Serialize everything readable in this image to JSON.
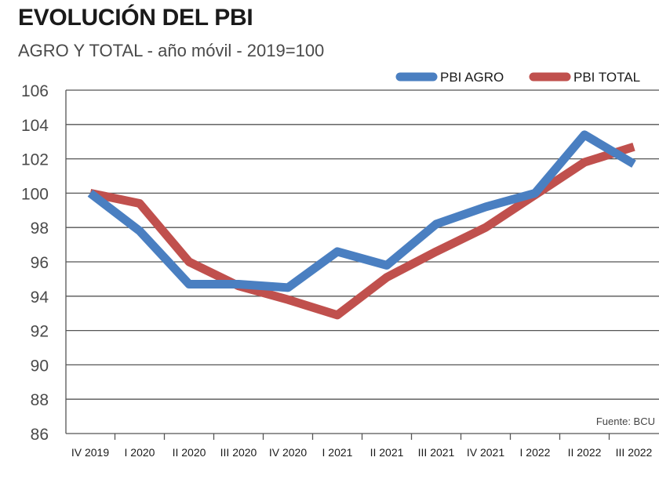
{
  "header": {
    "title": "EVOLUCIÓN DEL PBI",
    "subtitle": "AGRO Y TOTAL - año móvil - 2019=100"
  },
  "source": "Fuente: BCU",
  "colors": {
    "agro": "#4a7fc1",
    "total": "#c0504d",
    "grid": "#555555"
  },
  "chart_data": {
    "type": "line",
    "categories": [
      "IV 2019",
      "I 2020",
      "II 2020",
      "III 2020",
      "IV 2020",
      "I 2021",
      "II 2021",
      "III 2021",
      "IV 2021",
      "I 2022",
      "II 2022",
      "III 2022"
    ],
    "series": [
      {
        "name": "PBI AGRO",
        "values": [
          100.0,
          97.8,
          94.7,
          94.7,
          94.5,
          96.6,
          95.8,
          98.2,
          99.2,
          100.0,
          103.4,
          101.7
        ]
      },
      {
        "name": "PBI TOTAL",
        "values": [
          100.0,
          99.4,
          96.0,
          94.6,
          93.8,
          92.9,
          95.1,
          96.6,
          98.0,
          99.9,
          101.8,
          102.7
        ]
      }
    ],
    "yticks": [
      86,
      88,
      90,
      92,
      94,
      96,
      98,
      100,
      102,
      104,
      106
    ],
    "ylim": [
      86,
      106
    ],
    "grid": true,
    "legend": "top-right"
  }
}
